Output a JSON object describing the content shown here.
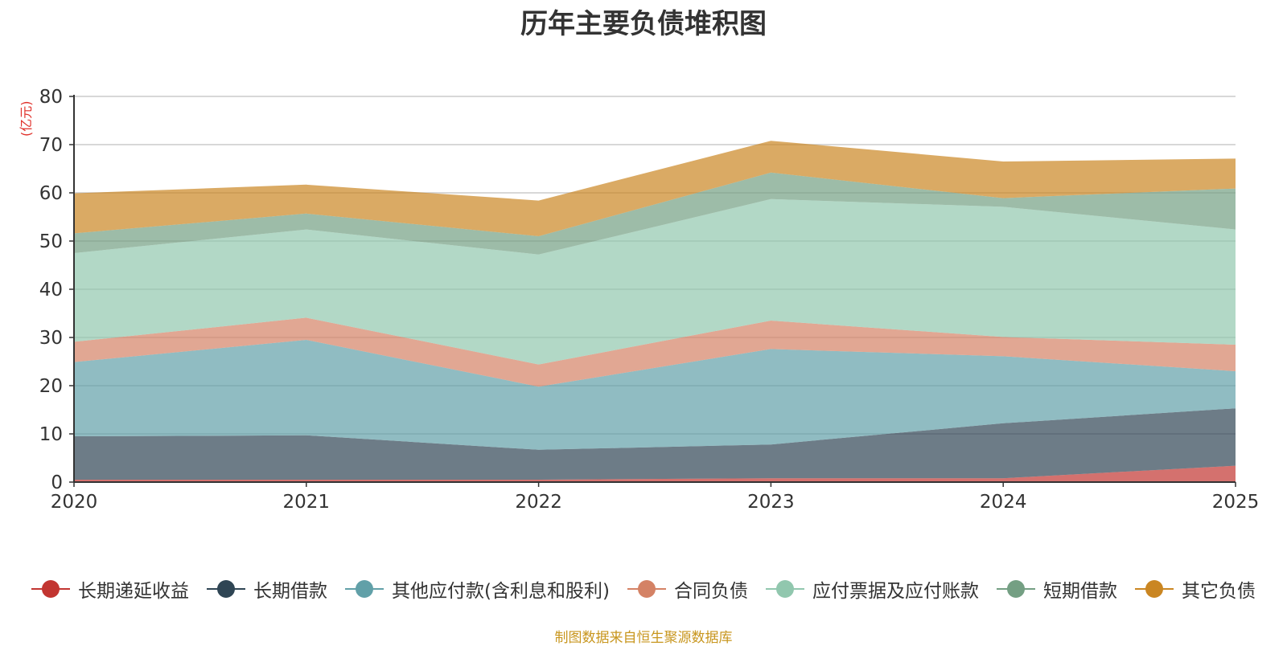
{
  "chart_data": {
    "type": "area",
    "stacked": true,
    "title": "历年主要负债堆积图",
    "ylabel": "(亿元)",
    "xlabel": "",
    "categories": [
      "2020",
      "2021",
      "2022",
      "2023",
      "2024",
      "2025"
    ],
    "ylim": [
      0,
      80
    ],
    "yticks": [
      0,
      10,
      20,
      30,
      40,
      50,
      60,
      70,
      80
    ],
    "grid": true,
    "legend_position": "bottom",
    "series": [
      {
        "name": "长期递延收益",
        "color": "#c23531",
        "values": [
          0.5,
          0.5,
          0.5,
          0.8,
          0.8,
          3.4
        ]
      },
      {
        "name": "长期借款",
        "color": "#2f4554",
        "values": [
          9.0,
          9.2,
          6.2,
          7.0,
          11.4,
          11.9
        ]
      },
      {
        "name": "其他应付款(含利息和股利)",
        "color": "#61a0a8",
        "values": [
          15.4,
          19.8,
          13.1,
          19.8,
          13.9,
          7.7
        ]
      },
      {
        "name": "合同负债",
        "color": "#d48265",
        "values": [
          4.2,
          4.6,
          4.6,
          5.9,
          4.0,
          5.5
        ]
      },
      {
        "name": "应付票据及应付账款",
        "color": "#91c7ae",
        "values": [
          18.4,
          18.3,
          22.8,
          25.2,
          27.0,
          23.9
        ]
      },
      {
        "name": "短期借款",
        "color": "#749f83",
        "values": [
          4.1,
          3.3,
          3.8,
          5.5,
          1.8,
          8.5
        ]
      },
      {
        "name": "其它负债",
        "color": "#ca8622",
        "values": [
          8.3,
          6.0,
          7.4,
          6.6,
          7.6,
          6.2
        ]
      }
    ]
  },
  "source_note": "制图数据来自恒生聚源数据库"
}
